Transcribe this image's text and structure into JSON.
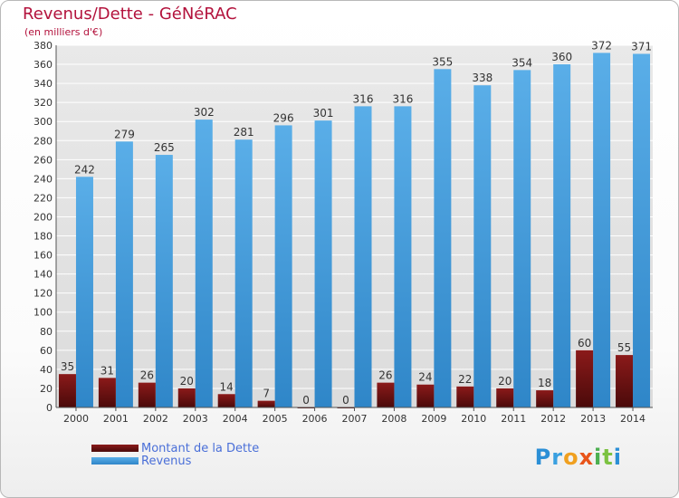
{
  "title": "Revenus/Dette - GéNéRAC",
  "subtitle": "(en milliers d'€)",
  "colors": {
    "title": "#b3123c",
    "debt_top": "#8b1a1a",
    "debt_bottom": "#4a0a0a",
    "revenue_top": "#5aaee8",
    "revenue_bottom": "#2f86c8",
    "grid": "#ffffff",
    "legend_text": "#4a6fd8"
  },
  "chart_data": {
    "type": "bar",
    "categories": [
      "2000",
      "2001",
      "2002",
      "2003",
      "2004",
      "2005",
      "2006",
      "2007",
      "2008",
      "2009",
      "2010",
      "2011",
      "2012",
      "2013",
      "2014"
    ],
    "series": [
      {
        "name": "Montant de la Dette",
        "values": [
          35,
          31,
          26,
          20,
          14,
          7,
          0,
          0,
          26,
          24,
          22,
          20,
          18,
          60,
          55
        ]
      },
      {
        "name": "Revenus",
        "values": [
          242,
          279,
          265,
          302,
          281,
          296,
          301,
          316,
          316,
          355,
          338,
          354,
          360,
          372,
          371
        ]
      }
    ],
    "ylim": [
      0,
      380
    ],
    "yticks": [
      0,
      20,
      40,
      60,
      80,
      100,
      120,
      140,
      160,
      180,
      200,
      220,
      240,
      260,
      280,
      300,
      320,
      340,
      360,
      380
    ],
    "grid": true,
    "legend": "bottom-left",
    "xlabel": "",
    "ylabel": ""
  },
  "legend": {
    "debt_label": "Montant de la Dette",
    "revenue_label": "Revenus"
  },
  "logo": {
    "letters": [
      {
        "char": "P",
        "color": "#2b8fd6"
      },
      {
        "char": "r",
        "color": "#3aa0e0"
      },
      {
        "char": "o",
        "color": "#f0a020"
      },
      {
        "char": "x",
        "color": "#e8541a"
      },
      {
        "char": "i",
        "color": "#4caf50"
      },
      {
        "char": "t",
        "color": "#7cc242"
      },
      {
        "char": "i",
        "color": "#2b8fd6"
      }
    ]
  }
}
